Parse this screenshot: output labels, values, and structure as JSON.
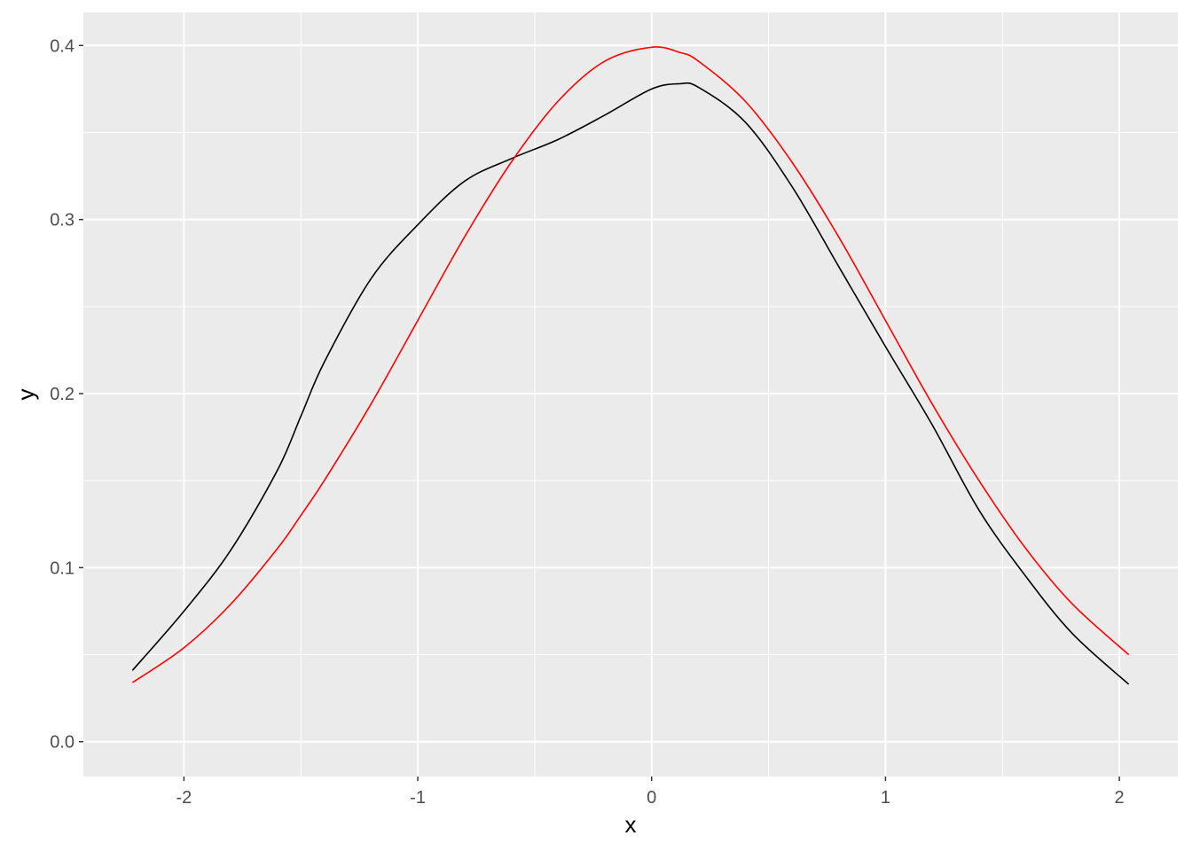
{
  "chart_data": {
    "type": "line",
    "title": "",
    "xlabel": "x",
    "ylabel": "y",
    "xlim": [
      -2.43,
      2.25
    ],
    "ylim": [
      -0.02,
      0.419
    ],
    "grid": true,
    "legend": "none",
    "x_ticks": [
      -2,
      -1,
      0,
      1,
      2
    ],
    "x_tick_labels": [
      "-2",
      "-1",
      "0",
      "1",
      "2"
    ],
    "y_ticks": [
      0.0,
      0.1,
      0.2,
      0.3,
      0.4
    ],
    "y_tick_labels": [
      "0.0",
      "0.1",
      "0.2",
      "0.3",
      "0.4"
    ],
    "x": [
      -2.22,
      -2.0,
      -1.8,
      -1.6,
      -1.5,
      -1.4,
      -1.2,
      -1.0,
      -0.8,
      -0.6,
      -0.4,
      -0.2,
      0.0,
      0.12,
      0.2,
      0.4,
      0.6,
      0.8,
      1.0,
      1.2,
      1.4,
      1.6,
      1.8,
      2.04
    ],
    "series": [
      {
        "color": "#000000",
        "values": [
          0.041,
          0.075,
          0.11,
          0.156,
          0.187,
          0.218,
          0.266,
          0.297,
          0.322,
          0.335,
          0.346,
          0.36,
          0.375,
          0.378,
          0.376,
          0.356,
          0.319,
          0.273,
          0.227,
          0.182,
          0.133,
          0.095,
          0.062,
          0.033
        ]
      },
      {
        "color": "#ff0000",
        "values": [
          0.034,
          0.054,
          0.079,
          0.111,
          0.13,
          0.15,
          0.194,
          0.242,
          0.29,
          0.333,
          0.368,
          0.391,
          0.399,
          0.396,
          0.391,
          0.368,
          0.333,
          0.29,
          0.242,
          0.194,
          0.15,
          0.111,
          0.079,
          0.05
        ]
      }
    ]
  }
}
